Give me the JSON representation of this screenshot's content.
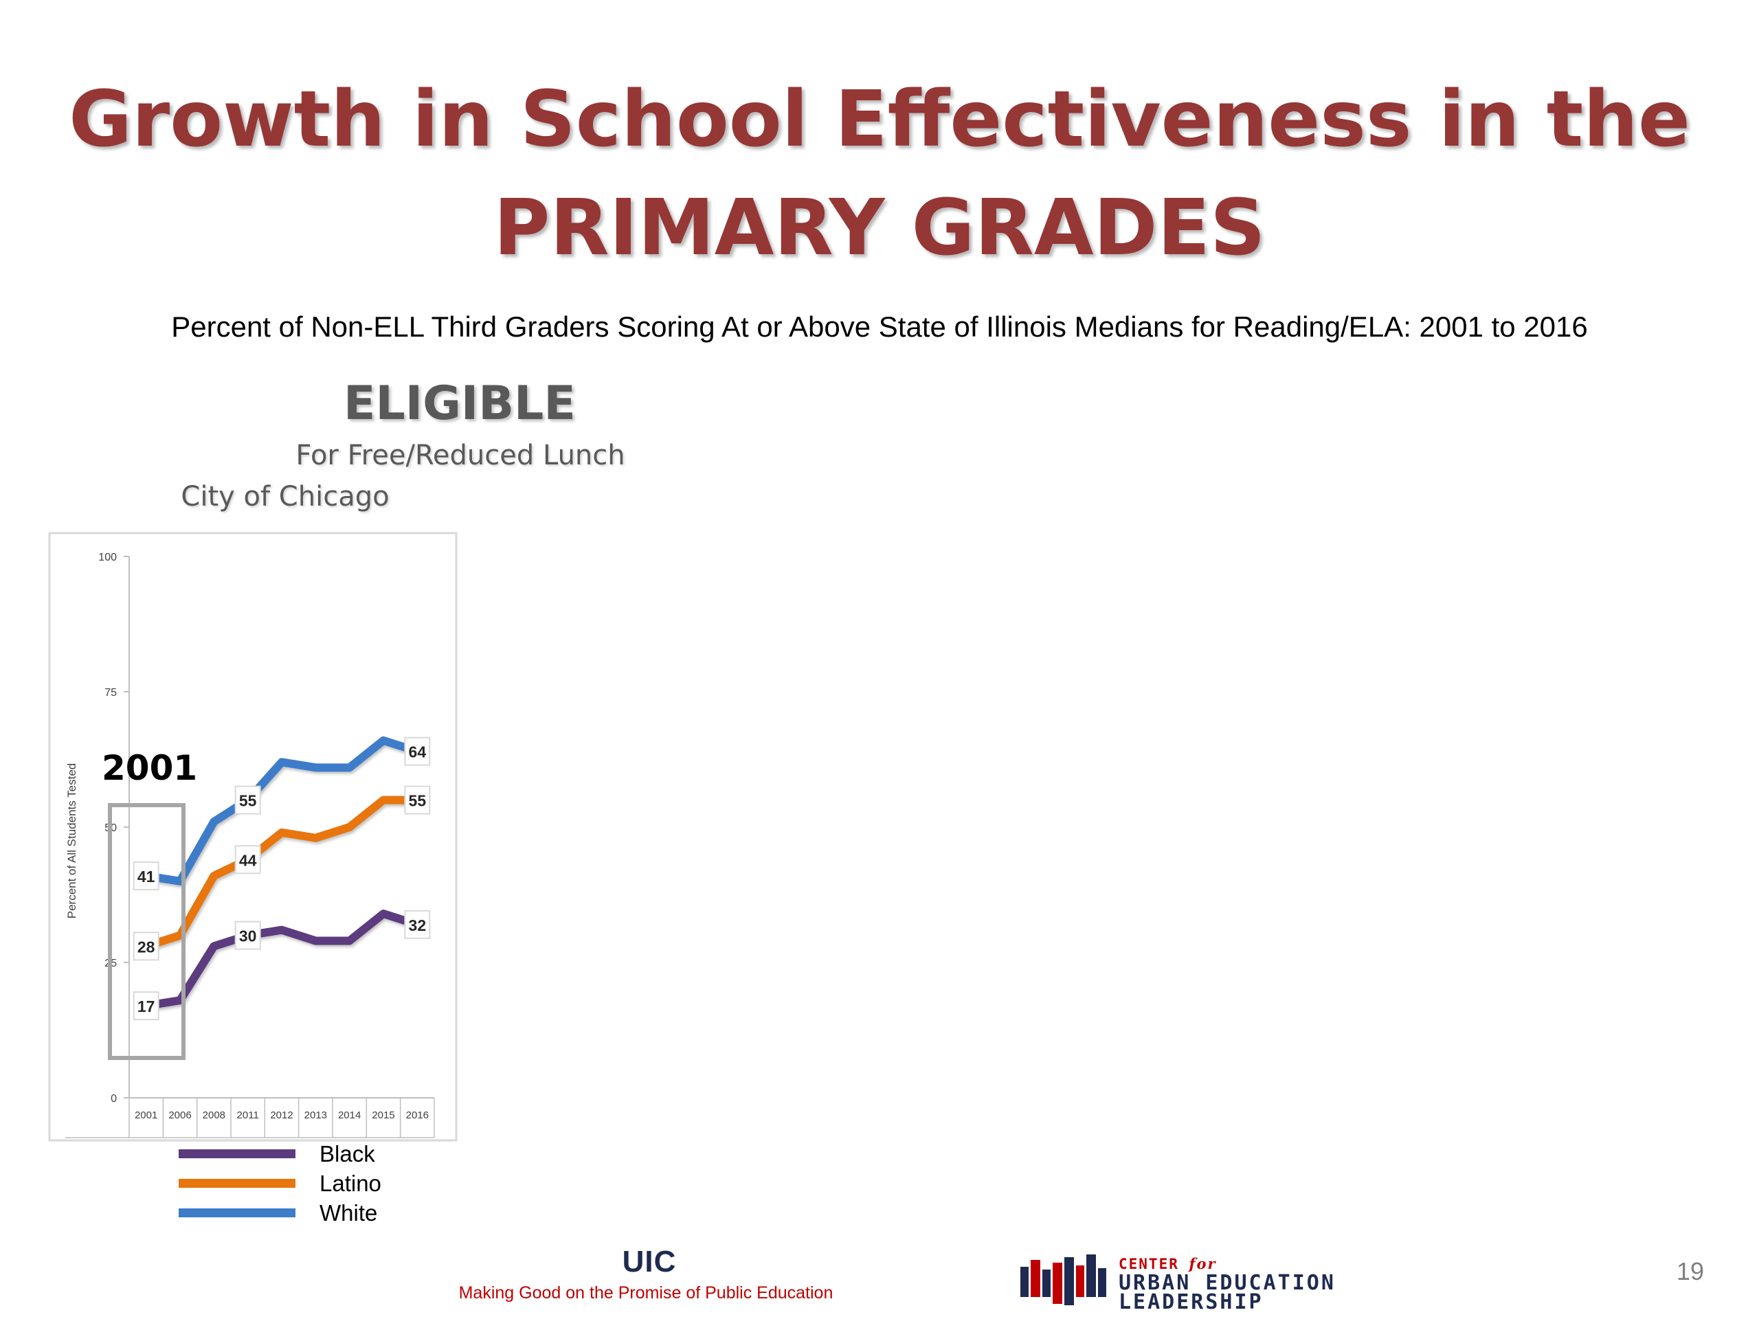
{
  "slide": {
    "title_line1": "Growth in School Effectiveness in the",
    "title_line2": "PRIMARY GRADES",
    "subtitle": "Percent of Non-ELL Third Graders Scoring At or Above State of Illinois Medians for Reading/ELA:  2001 to 2016",
    "eligible": "ELIGIBLE",
    "lunch_label": "For Free/Reduced Lunch",
    "city_label": "City of Chicago",
    "page_number": "19"
  },
  "footer": {
    "uic_logo": "UIC",
    "uic_tagline": "Making Good on the Promise of Public Education",
    "ceul_line1_a": "CENTER ",
    "ceul_line1_b": "for",
    "ceul_line2": "URBAN EDUCATION",
    "ceul_line3": "LEADERSHIP"
  },
  "chart_data": {
    "type": "line",
    "title": "",
    "xlabel": "",
    "ylabel": "Percent of All Students Tested",
    "ylim": [
      0,
      100
    ],
    "yticks": [
      0,
      25,
      50,
      75,
      100
    ],
    "categories": [
      "2001",
      "2006",
      "2008",
      "2011",
      "2012",
      "2013",
      "2014",
      "2015",
      "2016"
    ],
    "series": [
      {
        "name": "Black",
        "color": "#5b3b7e",
        "values": [
          17,
          18,
          28,
          30,
          31,
          29,
          29,
          34,
          32
        ]
      },
      {
        "name": "Latino",
        "color": "#e8750d",
        "values": [
          28,
          30,
          41,
          44,
          49,
          48,
          50,
          55,
          55
        ]
      },
      {
        "name": "White",
        "color": "#3d7cc9",
        "values": [
          41,
          40,
          51,
          55,
          62,
          61,
          61,
          66,
          64
        ]
      }
    ],
    "data_labels": [
      {
        "series": "White",
        "category": "2001",
        "text": "41"
      },
      {
        "series": "Latino",
        "category": "2001",
        "text": "28"
      },
      {
        "series": "Black",
        "category": "2001",
        "text": "17"
      },
      {
        "series": "White",
        "category": "2011",
        "text": "55"
      },
      {
        "series": "Latino",
        "category": "2011",
        "text": "44"
      },
      {
        "series": "Black",
        "category": "2011",
        "text": "30"
      },
      {
        "series": "White",
        "category": "2016",
        "text": "64"
      },
      {
        "series": "Latino",
        "category": "2016",
        "text": "55"
      },
      {
        "series": "Black",
        "category": "2016",
        "text": "32"
      }
    ],
    "annotation": "2001",
    "legend_position": "bottom"
  }
}
